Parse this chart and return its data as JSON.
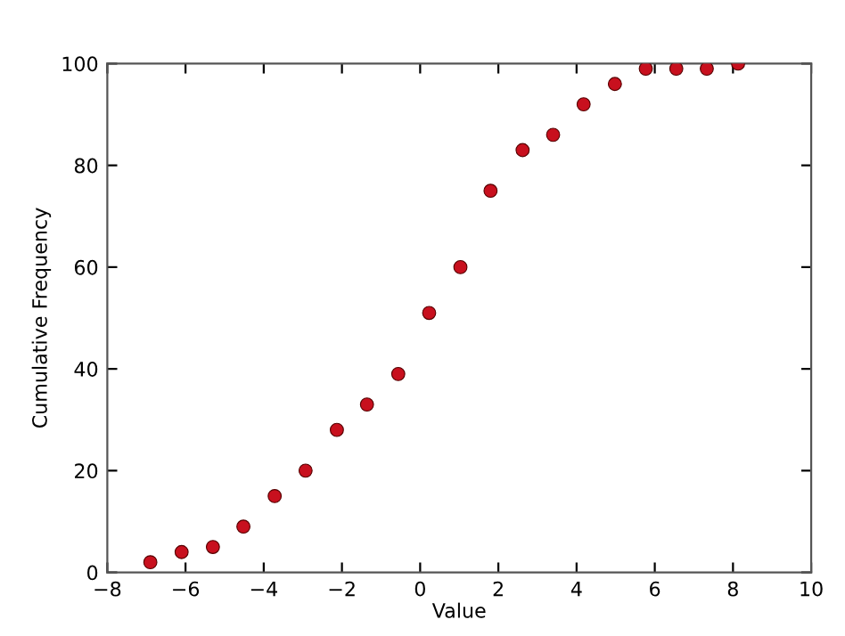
{
  "chart_data": {
    "type": "scatter",
    "xlabel": "Value",
    "ylabel": "Cumulative Frequency",
    "x": [
      -6.9,
      -6.1,
      -5.3,
      -4.52,
      -3.72,
      -2.93,
      -2.13,
      -1.36,
      -0.56,
      0.23,
      1.03,
      1.8,
      2.62,
      3.4,
      4.18,
      4.98,
      5.77,
      6.55,
      7.33,
      8.13
    ],
    "series": [
      {
        "color": "#c8101e",
        "values": [
          2,
          4,
          5,
          9,
          15,
          20,
          28,
          33,
          39,
          51,
          60,
          75,
          83,
          86,
          92,
          96,
          99,
          99,
          99,
          100
        ]
      }
    ],
    "xlim": [
      -8,
      10
    ],
    "xticks": [
      -8,
      -6,
      -4,
      -2,
      0,
      2,
      4,
      6,
      8,
      10
    ],
    "ylim": [
      0,
      100
    ],
    "yticks": [
      0,
      20,
      40,
      60,
      80,
      100
    ],
    "marker": "circle",
    "grid": false,
    "legend": false
  }
}
